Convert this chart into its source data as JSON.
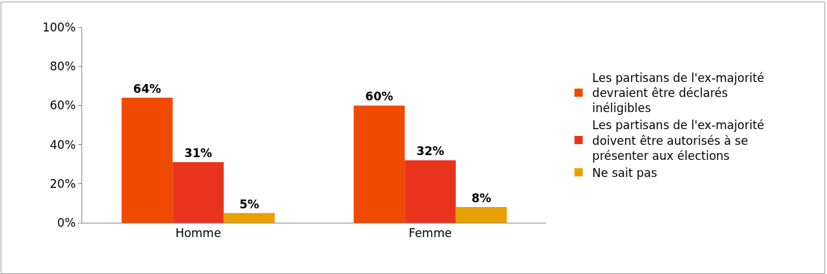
{
  "chart_data": {
    "type": "bar",
    "categories": [
      "Homme",
      "Femme"
    ],
    "series": [
      {
        "name": "Les partisans de l'ex-majorité devraient être déclarés inéligibles",
        "color": "#f04a00",
        "values": [
          64,
          60
        ],
        "value_labels": [
          "64%",
          "60%"
        ]
      },
      {
        "name": "Les partisans de l'ex-majorité doivent être autorisés à se présenter aux élections",
        "color": "#e8341c",
        "values": [
          31,
          32
        ],
        "value_labels": [
          "31%",
          "32%"
        ]
      },
      {
        "name": "Ne sait pas",
        "color": "#e8a000",
        "values": [
          5,
          8
        ],
        "value_labels": [
          "5%",
          "8%"
        ]
      }
    ],
    "ylim": [
      0,
      100
    ],
    "yticks": [
      {
        "value": 0,
        "label": "0%"
      },
      {
        "value": 20,
        "label": "20%"
      },
      {
        "value": 40,
        "label": "40%"
      },
      {
        "value": 60,
        "label": "60%"
      },
      {
        "value": 80,
        "label": "80%"
      },
      {
        "value": 100,
        "label": "100%"
      }
    ],
    "legend": "right"
  }
}
